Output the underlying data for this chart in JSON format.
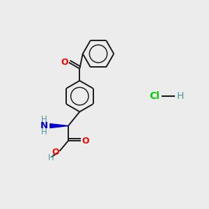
{
  "background_color": "#ececec",
  "bond_color": "#1a1a1a",
  "bond_width": 1.4,
  "O_color": "#ff0000",
  "N_color": "#0000cd",
  "H_color": "#4a9a9a",
  "Cl_color": "#00cc00",
  "wedge_color": "#0000cd",
  "fig_width": 3.0,
  "fig_height": 3.0,
  "xlim": [
    0,
    10
  ],
  "ylim": [
    0,
    10
  ]
}
